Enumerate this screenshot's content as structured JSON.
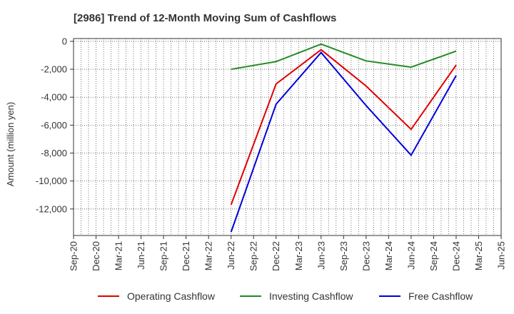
{
  "chart_data": {
    "type": "line",
    "title": "[2986]  Trend of 12-Month Moving Sum of Cashflows",
    "xlabel": "",
    "ylabel": "Amount (million yen)",
    "categories": [
      "Sep-20",
      "Dec-20",
      "Mar-21",
      "Jun-21",
      "Sep-21",
      "Dec-21",
      "Mar-22",
      "Jun-22",
      "Sep-22",
      "Dec-22",
      "Mar-23",
      "Jun-23",
      "Sep-23",
      "Dec-23",
      "Mar-24",
      "Jun-24",
      "Sep-24",
      "Dec-24",
      "Mar-25",
      "Jun-25"
    ],
    "ylim": [
      -13900,
      200
    ],
    "yticks": [
      0,
      -2000,
      -4000,
      -6000,
      -8000,
      -10000,
      -12000
    ],
    "ytick_labels": [
      "0",
      "-2,000",
      "-4,000",
      "-6,000",
      "-8,000",
      "-10,000",
      "-12,000"
    ],
    "grid": true,
    "legend_position": "bottom",
    "series": [
      {
        "name": "Operating Cashflow",
        "color": "#e00000",
        "points": [
          [
            "Jun-22",
            -11700
          ],
          [
            "Dec-22",
            -3050
          ],
          [
            "Jun-23",
            -600
          ],
          [
            "Dec-23",
            -3200
          ],
          [
            "Jun-24",
            -6300
          ],
          [
            "Dec-24",
            -1700
          ]
        ]
      },
      {
        "name": "Investing Cashflow",
        "color": "#228b22",
        "points": [
          [
            "Jun-22",
            -2000
          ],
          [
            "Dec-22",
            -1450
          ],
          [
            "Jun-23",
            -200
          ],
          [
            "Dec-23",
            -1400
          ],
          [
            "Jun-24",
            -1850
          ],
          [
            "Dec-24",
            -700
          ]
        ]
      },
      {
        "name": "Free Cashflow",
        "color": "#0000dd",
        "points": [
          [
            "Jun-22",
            -13650
          ],
          [
            "Dec-22",
            -4500
          ],
          [
            "Jun-23",
            -800
          ],
          [
            "Dec-23",
            -4600
          ],
          [
            "Jun-24",
            -8150
          ],
          [
            "Dec-24",
            -2450
          ]
        ]
      }
    ]
  }
}
